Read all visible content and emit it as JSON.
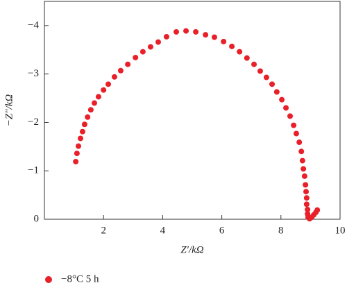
{
  "chart_data": {
    "type": "scatter",
    "x_label": "Z′/kΩ",
    "y_label": "−Z″/kΩ",
    "xlim": [
      0,
      10
    ],
    "xticks": [
      2,
      4,
      6,
      8,
      10
    ],
    "ylim": [
      0,
      -4.5
    ],
    "yticks": [
      0,
      {
        "value": -1,
        "label": "−1"
      },
      {
        "value": -2,
        "label": "−2"
      },
      {
        "value": -3,
        "label": "−3"
      },
      {
        "value": -4,
        "label": "−4"
      }
    ],
    "legend": "bottom-left",
    "x": [
      1.06,
      1.1,
      1.15,
      1.22,
      1.29,
      1.36,
      1.46,
      1.57,
      1.69,
      1.83,
      2.0,
      2.16,
      2.37,
      2.58,
      2.82,
      3.08,
      3.33,
      3.59,
      3.85,
      4.13,
      4.46,
      4.79,
      5.12,
      5.45,
      5.75,
      6.06,
      6.34,
      6.6,
      6.85,
      7.09,
      7.3,
      7.51,
      7.7,
      7.86,
      8.03,
      8.17,
      8.31,
      8.43,
      8.52,
      8.62,
      8.69,
      8.73,
      8.76,
      8.8,
      8.83,
      8.85,
      8.87,
      8.87,
      8.9,
      8.9,
      8.92,
      8.97,
      9.04,
      9.11,
      9.18,
      9.23
    ],
    "series": [
      {
        "name": "−8°C 5 h",
        "color": "#e8202a",
        "values": [
          -1.19,
          -1.36,
          -1.51,
          -1.67,
          -1.81,
          -1.96,
          -2.11,
          -2.26,
          -2.4,
          -2.53,
          -2.67,
          -2.79,
          -2.94,
          -3.07,
          -3.2,
          -3.34,
          -3.46,
          -3.56,
          -3.66,
          -3.77,
          -3.87,
          -3.89,
          -3.87,
          -3.81,
          -3.76,
          -3.67,
          -3.57,
          -3.46,
          -3.33,
          -3.2,
          -3.06,
          -2.93,
          -2.79,
          -2.63,
          -2.47,
          -2.3,
          -2.13,
          -1.94,
          -1.77,
          -1.59,
          -1.4,
          -1.21,
          -1.04,
          -0.89,
          -0.71,
          -0.57,
          -0.44,
          -0.31,
          -0.2,
          -0.11,
          -0.04,
          -0.01,
          -0.04,
          -0.09,
          -0.14,
          -0.19
        ]
      }
    ]
  }
}
